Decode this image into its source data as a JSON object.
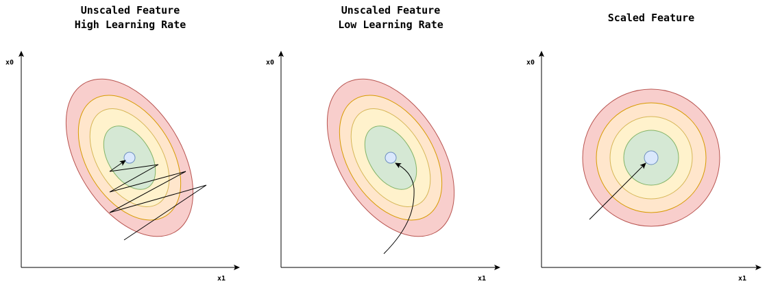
{
  "panels": [
    {
      "title": "Unscaled Feature\nHigh Learning Rate",
      "x_axis_label": "x1",
      "y_axis_label": "x0"
    },
    {
      "title": "Unscaled Feature\nLow Learning Rate",
      "x_axis_label": "x1",
      "y_axis_label": "x0"
    },
    {
      "title": "Scaled Feature",
      "x_axis_label": "x1",
      "y_axis_label": "x0"
    }
  ],
  "colors": {
    "contour_outer": "#f8cecc",
    "contour_outer_stroke": "#b85450",
    "contour_2": "#ffe6cc",
    "contour_2_stroke": "#d79b00",
    "contour_3": "#fff2cc",
    "contour_3_stroke": "#d6b656",
    "contour_inner": "#d5e8d4",
    "contour_inner_stroke": "#82b366",
    "minimum": "#dae8fc",
    "minimum_stroke": "#6c8ebf"
  }
}
